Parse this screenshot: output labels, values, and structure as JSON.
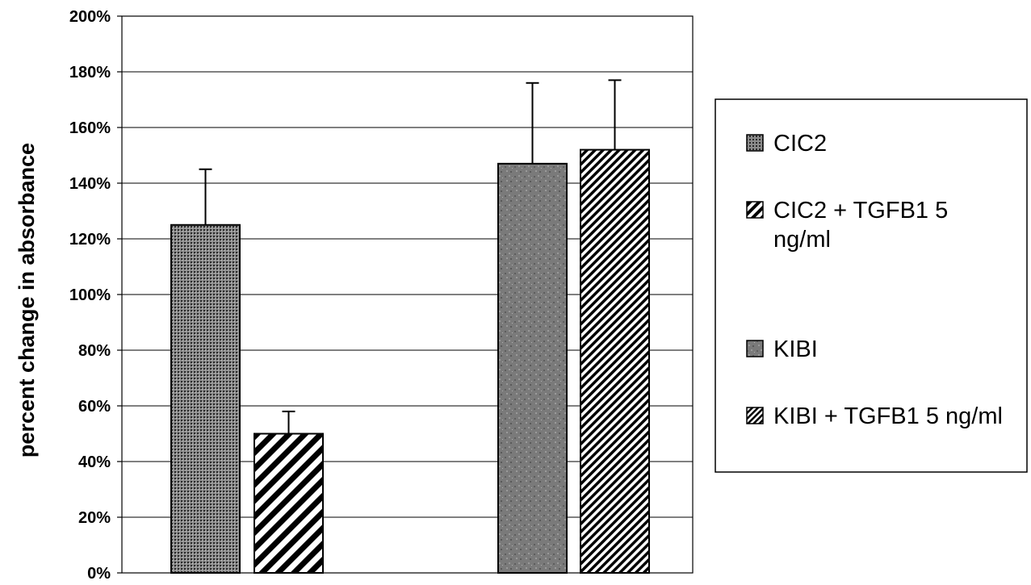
{
  "chart_data": {
    "type": "bar",
    "title": "",
    "xlabel": "",
    "ylabel": "percent change in absorbance",
    "ylim": [
      0,
      200
    ],
    "yticks": [
      "0%",
      "20%",
      "40%",
      "60%",
      "80%",
      "100%",
      "120%",
      "140%",
      "160%",
      "180%",
      "200%"
    ],
    "grid": true,
    "legend_position": "right",
    "series": [
      {
        "name": "CIC2",
        "value": 125,
        "error": 20,
        "group": 1,
        "pattern": "dots"
      },
      {
        "name": "CIC2 + TGFB1 5 ng/ml",
        "value": 50,
        "error": 8,
        "group": 1,
        "pattern": "wide-diagonal"
      },
      {
        "name": "KIBI",
        "value": 147,
        "error": 29,
        "group": 2,
        "pattern": "mottled-gray"
      },
      {
        "name": "KIBI + TGFB1 5 ng/ml",
        "value": 152,
        "error": 25,
        "group": 2,
        "pattern": "fine-diagonal"
      }
    ]
  }
}
